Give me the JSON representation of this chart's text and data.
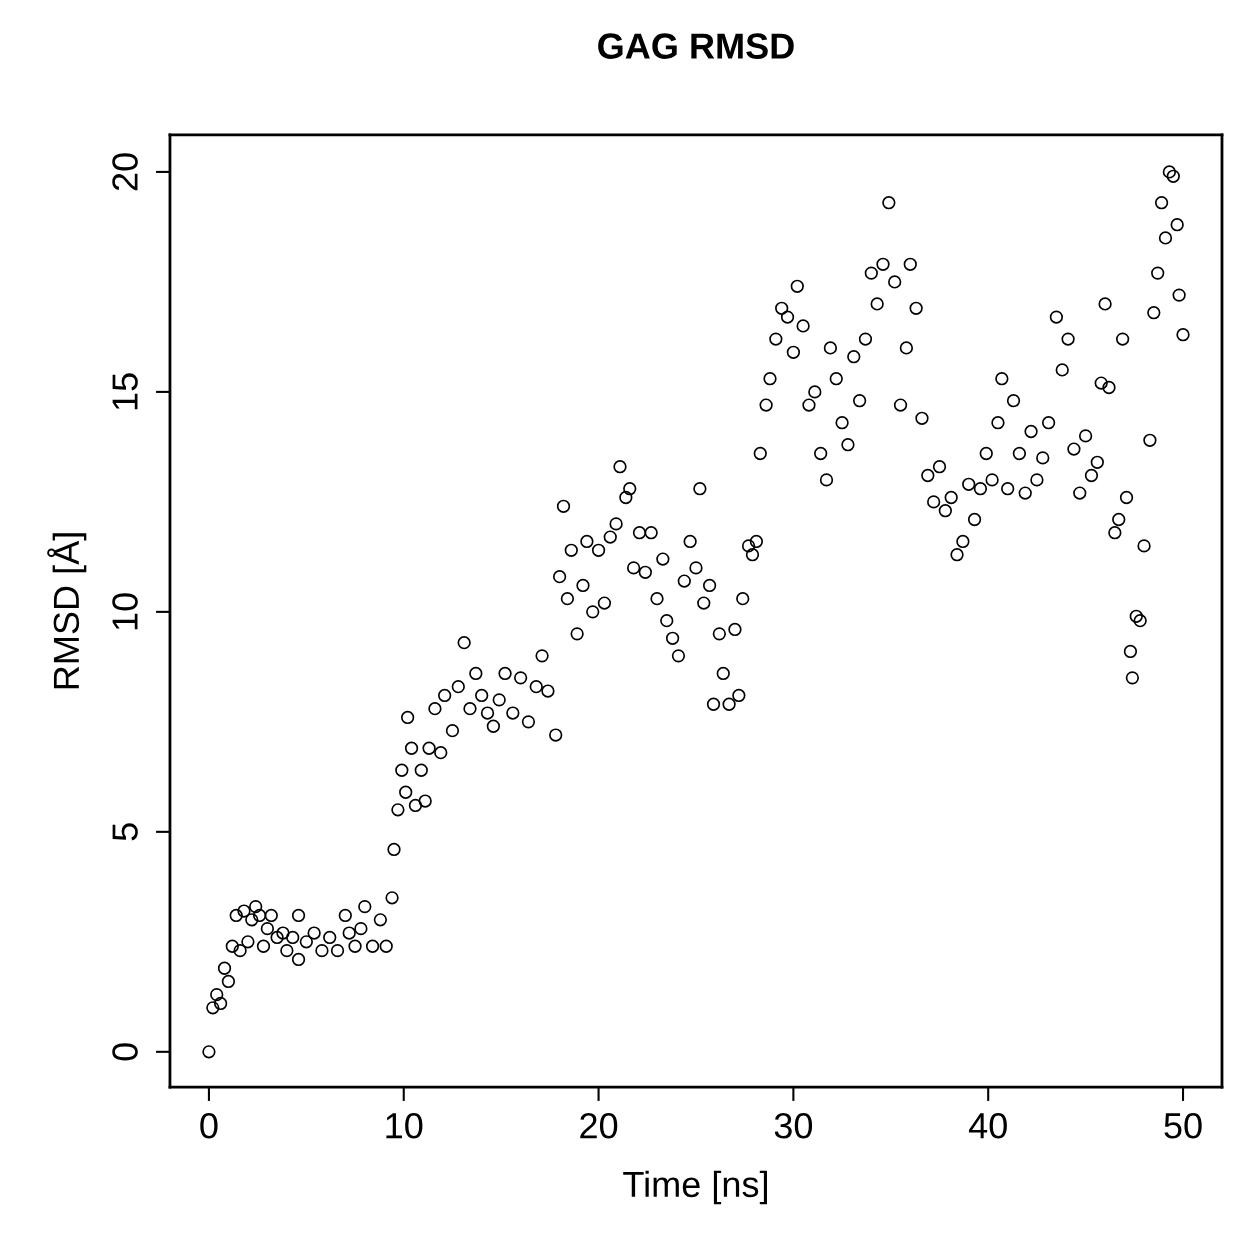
{
  "chart_data": {
    "type": "scatter",
    "title": "GAG RMSD",
    "xlabel": "Time [ns]",
    "ylabel": "RMSD [Å]",
    "xlim": [
      -2,
      52
    ],
    "ylim": [
      -0.8,
      20.84
    ],
    "xticks": [
      0,
      10,
      20,
      30,
      40,
      50
    ],
    "yticks": [
      0,
      5,
      10,
      15,
      20
    ],
    "grid": false,
    "marker": "circle",
    "series": [
      {
        "color": "#000000",
        "x": [
          0,
          0.2,
          0.4,
          0.6,
          0.8,
          1.0,
          1.2,
          1.4,
          1.6,
          1.8,
          2.0,
          2.2,
          2.4,
          2.6,
          2.8,
          3.0,
          3.2,
          3.5,
          3.8,
          4.0,
          4.3,
          4.6,
          4.6,
          5.0,
          5.4,
          5.8,
          6.2,
          6.6,
          7.0,
          7.2,
          7.5,
          7.8,
          8.0,
          8.4,
          8.8,
          9.1,
          9.4,
          9.5,
          9.7,
          9.9,
          10.1,
          10.2,
          10.4,
          10.6,
          10.9,
          11.1,
          11.3,
          11.6,
          11.9,
          12.1,
          12.5,
          12.8,
          13.1,
          13.4,
          13.7,
          14.0,
          14.3,
          14.6,
          14.9,
          15.2,
          15.6,
          16.0,
          16.4,
          16.8,
          17.1,
          17.4,
          17.8,
          18.0,
          18.2,
          18.4,
          18.6,
          18.9,
          19.2,
          19.4,
          19.7,
          20.0,
          20.3,
          20.6,
          20.9,
          21.1,
          21.4,
          21.6,
          21.8,
          22.1,
          22.4,
          22.7,
          23.0,
          23.3,
          23.5,
          23.8,
          24.1,
          24.4,
          24.7,
          25.0,
          25.2,
          25.4,
          25.7,
          25.9,
          26.2,
          26.4,
          26.7,
          27.0,
          27.2,
          27.4,
          27.7,
          27.9,
          28.1,
          28.3,
          28.6,
          28.8,
          29.1,
          29.4,
          29.7,
          30.0,
          30.2,
          30.5,
          30.8,
          31.1,
          31.4,
          31.7,
          31.9,
          32.2,
          32.5,
          32.8,
          33.1,
          33.4,
          33.7,
          34.0,
          34.3,
          34.6,
          34.9,
          35.2,
          35.5,
          35.8,
          36.0,
          36.3,
          36.6,
          36.9,
          37.2,
          37.5,
          37.8,
          38.1,
          38.4,
          38.7,
          39.0,
          39.3,
          39.6,
          39.9,
          40.2,
          40.5,
          40.7,
          41.0,
          41.3,
          41.6,
          41.9,
          42.2,
          42.5,
          42.8,
          43.1,
          43.5,
          43.8,
          44.1,
          44.4,
          44.7,
          45.0,
          45.3,
          45.6,
          45.8,
          46.0,
          46.2,
          46.5,
          46.7,
          46.9,
          47.1,
          47.3,
          47.4,
          47.6,
          47.8,
          48.0,
          48.3,
          48.5,
          48.7,
          48.9,
          49.1,
          49.3,
          49.5,
          49.7,
          49.8,
          50.0
        ],
        "values": [
          0,
          1.0,
          1.3,
          1.1,
          1.9,
          1.6,
          2.4,
          3.1,
          2.3,
          3.2,
          2.5,
          3.0,
          3.3,
          3.1,
          2.4,
          2.8,
          3.1,
          2.6,
          2.7,
          2.3,
          2.6,
          2.1,
          3.1,
          2.5,
          2.7,
          2.3,
          2.6,
          2.3,
          3.1,
          2.7,
          2.4,
          2.8,
          3.3,
          2.4,
          3.0,
          2.4,
          3.5,
          4.6,
          5.5,
          6.4,
          5.9,
          7.6,
          6.9,
          5.6,
          6.4,
          5.7,
          6.9,
          7.8,
          6.8,
          8.1,
          7.3,
          8.3,
          9.3,
          7.8,
          8.6,
          8.1,
          7.7,
          7.4,
          8.0,
          8.6,
          7.7,
          8.5,
          7.5,
          8.3,
          9.0,
          8.2,
          7.2,
          10.8,
          12.4,
          10.3,
          11.4,
          9.5,
          10.6,
          11.6,
          10.0,
          11.4,
          10.2,
          11.7,
          12.0,
          13.3,
          12.6,
          12.8,
          11.0,
          11.8,
          10.9,
          11.8,
          10.3,
          11.2,
          9.8,
          9.4,
          9.0,
          10.7,
          11.6,
          11.0,
          12.8,
          10.2,
          10.6,
          7.9,
          9.5,
          8.6,
          7.9,
          9.6,
          8.1,
          10.3,
          11.5,
          11.3,
          11.6,
          13.6,
          14.7,
          15.3,
          16.2,
          16.9,
          16.7,
          15.9,
          17.4,
          16.5,
          14.7,
          15.0,
          13.6,
          13.0,
          16.0,
          15.3,
          14.3,
          13.8,
          15.8,
          14.8,
          16.2,
          17.7,
          17.0,
          17.9,
          19.3,
          17.5,
          14.7,
          16.0,
          17.9,
          16.9,
          14.4,
          13.1,
          12.5,
          13.3,
          12.3,
          12.6,
          11.3,
          11.6,
          12.9,
          12.1,
          12.8,
          13.6,
          13.0,
          14.3,
          15.3,
          12.8,
          14.8,
          13.6,
          12.7,
          14.1,
          13.0,
          13.5,
          14.3,
          16.7,
          15.5,
          16.2,
          13.7,
          12.7,
          14.0,
          13.1,
          13.4,
          15.2,
          17.0,
          15.1,
          11.8,
          12.1,
          16.2,
          12.6,
          9.1,
          8.5,
          9.9,
          9.8,
          11.5,
          13.9,
          16.8,
          17.7,
          19.3,
          18.5,
          20.0,
          19.9,
          18.8,
          17.2,
          16.3
        ]
      }
    ]
  }
}
